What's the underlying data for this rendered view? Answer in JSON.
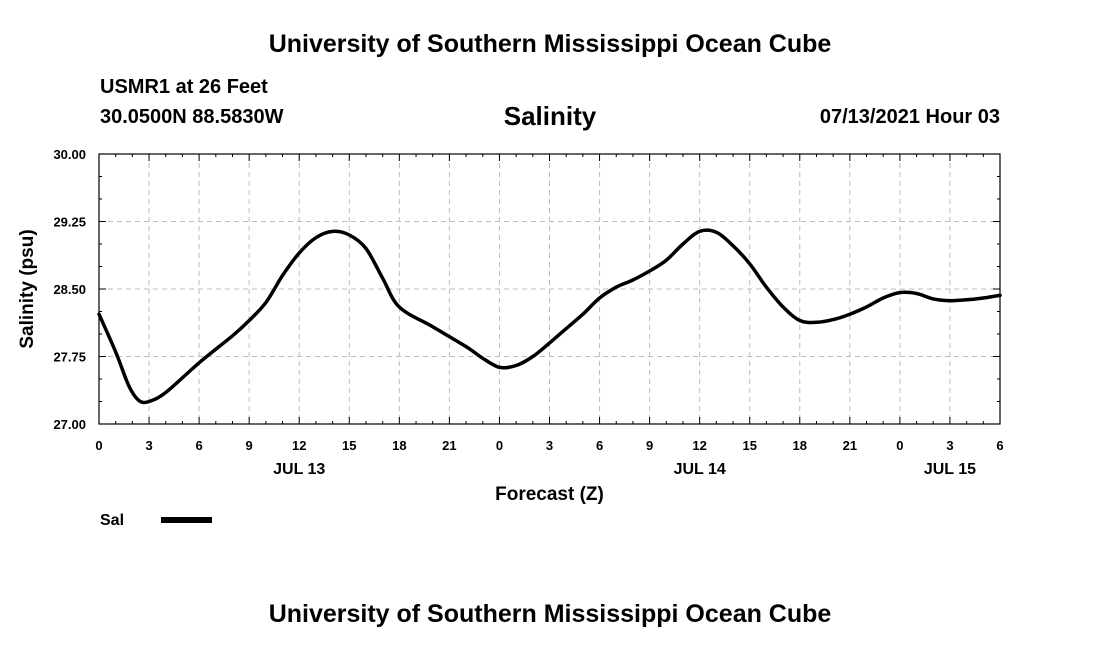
{
  "header": {
    "title": "University of Southern Mississippi Ocean Cube",
    "station": "USMR1 at 26 Feet",
    "coords": "30.0500N  88.5830W",
    "variable": "Salinity",
    "timestamp": "07/13/2021 Hour 03"
  },
  "footer": {
    "title": "University of Southern Mississippi Ocean Cube"
  },
  "chart_data": {
    "type": "line",
    "title": "Salinity",
    "xlabel": "Forecast (Z)",
    "ylabel": "Salinity (psu)",
    "xlim": [
      0,
      54
    ],
    "ylim": [
      27.0,
      30.0
    ],
    "yticks": [
      "27.00",
      "27.75",
      "28.50",
      "29.25",
      "30.00"
    ],
    "xticks": [
      {
        "h": 0,
        "label": "0"
      },
      {
        "h": 3,
        "label": "3"
      },
      {
        "h": 6,
        "label": "6"
      },
      {
        "h": 9,
        "label": "9"
      },
      {
        "h": 12,
        "label": "12"
      },
      {
        "h": 15,
        "label": "15"
      },
      {
        "h": 18,
        "label": "18"
      },
      {
        "h": 21,
        "label": "21"
      },
      {
        "h": 24,
        "label": "0"
      },
      {
        "h": 27,
        "label": "3"
      },
      {
        "h": 30,
        "label": "6"
      },
      {
        "h": 33,
        "label": "9"
      },
      {
        "h": 36,
        "label": "12"
      },
      {
        "h": 39,
        "label": "15"
      },
      {
        "h": 42,
        "label": "18"
      },
      {
        "h": 45,
        "label": "21"
      },
      {
        "h": 48,
        "label": "0"
      },
      {
        "h": 51,
        "label": "3"
      },
      {
        "h": 54,
        "label": "6"
      }
    ],
    "date_labels": [
      {
        "h": 12,
        "label": "JUL 13"
      },
      {
        "h": 36,
        "label": "JUL 14"
      },
      {
        "h": 51,
        "label": "JUL 15"
      }
    ],
    "legend": {
      "label": "Sal",
      "position": "bottom-left"
    },
    "grid": true,
    "series": [
      {
        "name": "Sal",
        "x": [
          0,
          1,
          1.8,
          2.4,
          3,
          4,
          6,
          8,
          9,
          10,
          11,
          12,
          13,
          14,
          15,
          16,
          17,
          18,
          20,
          22,
          23,
          24,
          25,
          26,
          27,
          28,
          29,
          30,
          31,
          32,
          33,
          34,
          35,
          36,
          37,
          38,
          39,
          40,
          41,
          42,
          43,
          44,
          45,
          46,
          47,
          48,
          49,
          50,
          51,
          52,
          53,
          54
        ],
        "y": [
          28.22,
          27.8,
          27.42,
          27.26,
          27.25,
          27.35,
          27.68,
          27.98,
          28.15,
          28.35,
          28.65,
          28.9,
          29.07,
          29.14,
          29.1,
          28.95,
          28.62,
          28.3,
          28.08,
          27.86,
          27.73,
          27.63,
          27.65,
          27.75,
          27.9,
          28.06,
          28.22,
          28.4,
          28.52,
          28.6,
          28.7,
          28.82,
          29.0,
          29.14,
          29.13,
          28.98,
          28.78,
          28.52,
          28.3,
          28.15,
          28.13,
          28.16,
          28.22,
          28.3,
          28.4,
          28.46,
          28.45,
          28.39,
          28.37,
          28.38,
          28.4,
          28.43
        ]
      }
    ]
  }
}
